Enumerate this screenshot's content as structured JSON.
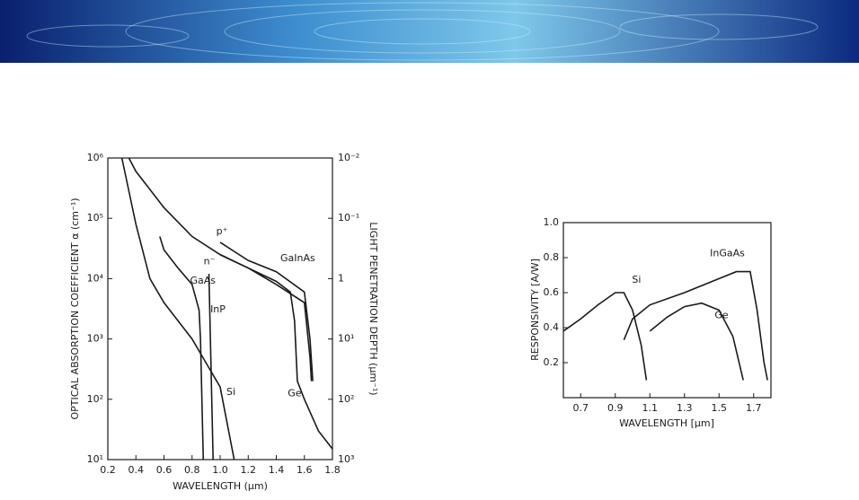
{
  "chart_data": [
    {
      "type": "line",
      "color": "#1a1a1a",
      "log_y": true,
      "log_y2": true,
      "grid": false,
      "xlabel": "WAVELENGTH (μm)",
      "ylabel": "OPTICAL ABSORPTION COEFFICIENT α (cm⁻¹)",
      "y2label": "LIGHT PENETRATION DEPTH (μm⁻¹)",
      "xlim": [
        0.2,
        1.8
      ],
      "xticks": [
        0.2,
        0.4,
        0.6,
        0.8,
        {
          "value": 1,
          "label": "1.0"
        },
        1.2,
        1.4,
        1.6,
        1.8
      ],
      "ylim": [
        10,
        1000000
      ],
      "yticks": [
        {
          "value": 10,
          "label": "10¹"
        },
        {
          "value": 100,
          "label": "10²"
        },
        {
          "value": 1000,
          "label": "10³"
        },
        {
          "value": 10000,
          "label": "10⁴"
        },
        {
          "value": 100000,
          "label": "10⁵"
        },
        {
          "value": 1000000,
          "label": "10⁶"
        }
      ],
      "y2lim": [
        1000,
        0.01
      ],
      "y2ticks": [
        {
          "value": 1000,
          "label": "10³"
        },
        {
          "value": 100,
          "label": "10²"
        },
        {
          "value": 10,
          "label": "10¹"
        },
        1,
        {
          "value": 0.1,
          "label": "10⁻¹"
        },
        {
          "value": 0.01,
          "label": "10⁻²"
        }
      ],
      "annotations": [
        "GaInAs"
      ],
      "series": [
        {
          "name": "Si",
          "x": [
            0.3,
            0.4,
            0.5,
            0.6,
            0.7,
            0.8,
            0.9,
            1.0,
            1.1
          ],
          "values": [
            1000000,
            80000,
            10000,
            4000,
            2000,
            1000,
            400,
            160,
            10
          ]
        },
        {
          "name": "GaAs",
          "x": [
            0.57,
            0.6,
            0.7,
            0.8,
            0.85,
            0.86,
            0.88
          ],
          "values": [
            50000,
            30000,
            15000,
            8000,
            3000,
            1000,
            10
          ]
        },
        {
          "name": "InP",
          "x": [
            0.92,
            0.95
          ],
          "values": [
            12000,
            10
          ]
        },
        {
          "name": "Ge",
          "x": [
            0.35,
            0.4,
            0.5,
            0.6,
            0.8,
            1.0,
            1.2,
            1.4,
            1.5,
            1.53,
            1.55,
            1.6,
            1.7,
            1.8
          ],
          "values": [
            1000000,
            600000,
            300000,
            150000,
            50000,
            25000,
            15000,
            9000,
            6000,
            2000,
            200,
            100,
            30,
            15
          ]
        },
        {
          "name": "p⁺",
          "x": [
            1.0,
            1.2,
            1.4,
            1.6,
            1.64,
            1.66
          ],
          "values": [
            40000,
            20000,
            13000,
            6000,
            1000,
            200
          ]
        },
        {
          "name": "n⁻",
          "x": [
            1.0,
            1.2,
            1.4,
            1.6,
            1.64,
            1.65
          ],
          "values": [
            25000,
            15000,
            8000,
            4000,
            500,
            200
          ]
        }
      ]
    },
    {
      "type": "line",
      "color": "#1a1a1a",
      "log_y": false,
      "grid": false,
      "xlabel": "WAVELENGTH [μm]",
      "ylabel": "RESPONSIVITY [A/W]",
      "xlim": [
        0.6,
        1.8
      ],
      "xticks": [
        0.7,
        0.9,
        1.1,
        1.3,
        1.5,
        1.7
      ],
      "ylim": [
        0,
        1
      ],
      "yticks": [
        0.2,
        0.4,
        0.6,
        0.8,
        {
          "value": 1,
          "label": "1.0"
        }
      ],
      "series": [
        {
          "name": "Si",
          "x": [
            0.6,
            0.7,
            0.8,
            0.9,
            0.95,
            1.0,
            1.05,
            1.08
          ],
          "values": [
            0.38,
            0.45,
            0.53,
            0.6,
            0.6,
            0.5,
            0.3,
            0.1
          ]
        },
        {
          "name": "InGaAs",
          "x": [
            0.95,
            1.0,
            1.1,
            1.3,
            1.5,
            1.6,
            1.68,
            1.72,
            1.76,
            1.78
          ],
          "values": [
            0.33,
            0.45,
            0.53,
            0.6,
            0.68,
            0.72,
            0.72,
            0.5,
            0.2,
            0.1
          ]
        },
        {
          "name": "Ge",
          "x": [
            1.1,
            1.2,
            1.3,
            1.4,
            1.5,
            1.58,
            1.64
          ],
          "values": [
            0.38,
            0.46,
            0.52,
            0.54,
            0.5,
            0.35,
            0.1
          ]
        }
      ]
    }
  ]
}
